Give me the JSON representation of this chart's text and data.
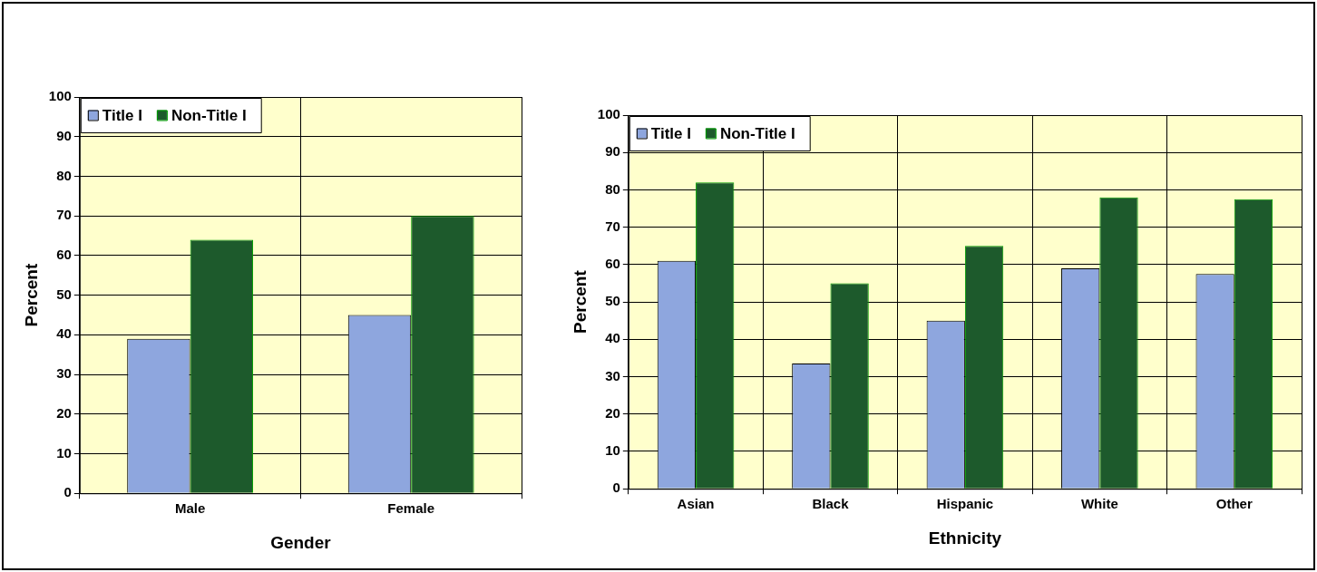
{
  "chart_data": [
    {
      "type": "bar",
      "xlabel": "Gender",
      "ylabel": "Percent",
      "categories": [
        "Male",
        "Female"
      ],
      "series": [
        {
          "name": "Title I",
          "color": "#8ea6de",
          "values": [
            39,
            45
          ]
        },
        {
          "name": "Non-Title I",
          "color": "#1d5a2c",
          "values": [
            64,
            70
          ]
        }
      ],
      "ylim": [
        0,
        100
      ],
      "yticks": [
        0,
        10,
        20,
        30,
        40,
        50,
        60,
        70,
        80,
        90,
        100
      ],
      "grid": true,
      "legend": "top left"
    },
    {
      "type": "bar",
      "xlabel": "Ethnicity",
      "ylabel": "Percent",
      "categories": [
        "Asian",
        "Black",
        "Hispanic",
        "White",
        "Other"
      ],
      "series": [
        {
          "name": "Title I",
          "color": "#8ea6de",
          "values": [
            61,
            33.5,
            45,
            59,
            57.5
          ]
        },
        {
          "name": "Non-Title I",
          "color": "#1d5a2c",
          "values": [
            82,
            55,
            65,
            78,
            77.5
          ]
        }
      ],
      "ylim": [
        0,
        100
      ],
      "yticks": [
        0,
        10,
        20,
        30,
        40,
        50,
        60,
        70,
        80,
        90,
        100
      ],
      "grid": true,
      "legend": "top left"
    }
  ]
}
